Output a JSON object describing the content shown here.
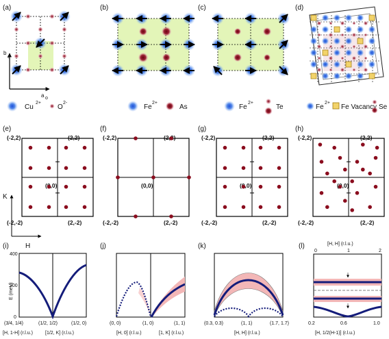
{
  "top_row": {
    "a": {
      "label": "(a)",
      "axis_b": "b",
      "axis_b_sub": "o",
      "axis_a": "a",
      "axis_a_sub": "o",
      "legend": [
        {
          "text": "Cu",
          "sup": "2+"
        },
        {
          "text": "O",
          "sup": "2-"
        }
      ]
    },
    "b": {
      "label": "(b)",
      "legend": [
        {
          "text": "Fe",
          "sup": "2+"
        },
        {
          "text": "As",
          "sup": ""
        }
      ]
    },
    "c": {
      "label": "(c)",
      "legend": [
        {
          "text": "Fe",
          "sup": "2+"
        },
        {
          "text": "Te",
          "sup": ""
        }
      ]
    },
    "d": {
      "label": "(d)",
      "legend": [
        {
          "text": "Fe",
          "sup": "2+"
        },
        {
          "text": "Fe Vacancy",
          "sup": ""
        },
        {
          "text": "Se",
          "sup": ""
        }
      ]
    }
  },
  "middle_row": {
    "panels": [
      {
        "label": "(e)",
        "tl": "(-2,2)",
        "tr": "(2,2)",
        "bl": "(-2,-2)",
        "br": "(2,-2)",
        "center": "(0,0)"
      },
      {
        "label": "(f)",
        "tl": "(-2,2)",
        "tr": "(2,2)",
        "bl": "(-2,-2)",
        "br": "(2,-2)",
        "center": "(0,0)"
      },
      {
        "label": "(g)",
        "tl": "(-2,2)",
        "tr": "(2,2)",
        "bl": "(-2,-2)",
        "br": "(2,-2)",
        "center": "(0,0)"
      },
      {
        "label": "(h)",
        "tl": "(-2,2)",
        "tr": "(2,2)",
        "bl": "(-2,-2)",
        "br": "(2,-2)",
        "center": "(0,0)"
      }
    ],
    "axis_k": "K",
    "axis_h": "H"
  },
  "bottom_row": {
    "i": {
      "label": "(i)",
      "ylabel": "E (meV)",
      "yticks": [
        "400",
        "200",
        "0"
      ],
      "xticks": [
        "(3/4, 1/4)",
        "(1/2, 1/2)",
        "(1/2, 0)"
      ],
      "xlabels": [
        "[H, 1-H] (r.l.u.)",
        "[1/2, K] (r.l.u.)"
      ]
    },
    "j": {
      "label": "(j)",
      "xticks": [
        "(0, 0)",
        "(1, 0)",
        "(1, 1)"
      ],
      "xlabels": [
        "[H, 0] (r.l.u.)",
        "[1, K] (r.l.u.)"
      ]
    },
    "k": {
      "label": "(k)",
      "xticks": [
        "(0.3, 0.3)",
        "(1, 1)",
        "(1.7, 1.7)"
      ],
      "xlabel": "[H, H] (r.l.u.)"
    },
    "l": {
      "label": "(l)",
      "top_label": "[H, H] (r.l.u.)",
      "top_ticks": [
        "0",
        "1",
        "2"
      ],
      "bottom_ticks": [
        "0.2",
        "0.6",
        "1.0"
      ],
      "bottom_label": "[H, 1/2(H-1)] (r.l.u.)"
    }
  },
  "colors": {
    "copper": "#3a78e0",
    "oxygen": "#8a1a2a",
    "iron_as": "#7a0a14",
    "cell_fill": "#e3f5b8",
    "dispersion": "#141c7a",
    "band": "#f3b7b7"
  }
}
